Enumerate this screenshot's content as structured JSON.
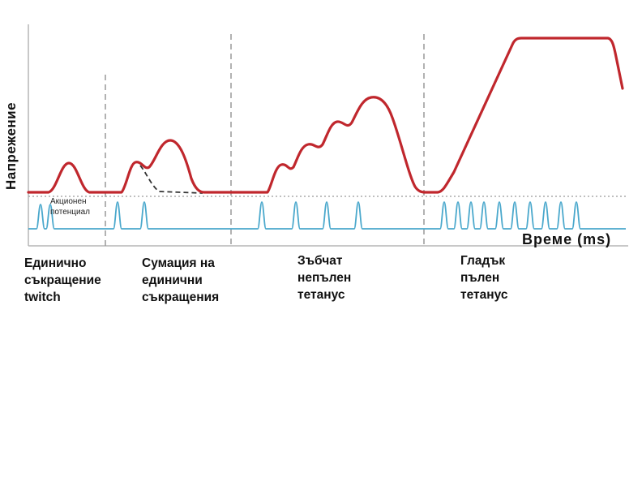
{
  "colors": {
    "tension": "#c0272d",
    "action_potential": "#4aa8cc",
    "separator": "#999999",
    "decay": "#333333",
    "baseline": "#aaaaaa"
  },
  "axes": {
    "y_label": "Напрежение",
    "x_label": "Време (ms)"
  },
  "trace_labels": {
    "ap_line1": "Акционен",
    "ap_line2": "потенциал"
  },
  "sections": [
    {
      "line1": "Единично",
      "line2": "съкращение",
      "line3": "twitch"
    },
    {
      "line1": "Сумация на",
      "line2": "единични",
      "line3": "съкращения"
    },
    {
      "line1": "Зъбчат",
      "line2": "непълен",
      "line3": "тетанус"
    },
    {
      "line1": "Гладък",
      "line2": "пълен",
      "line3": "тетанус"
    }
  ]
}
